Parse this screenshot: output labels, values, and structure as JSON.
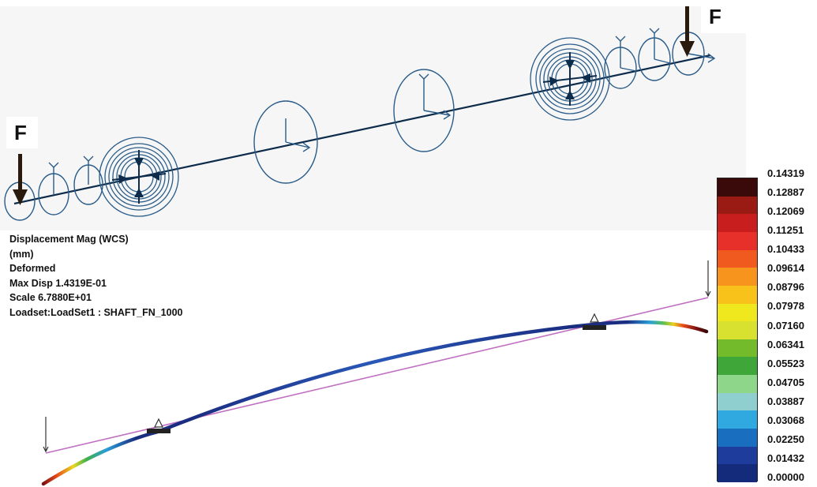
{
  "model": {
    "force_label_left": "F",
    "force_label_right": "F"
  },
  "info": {
    "line1": "Displacement Mag (WCS)",
    "line2": "(mm)",
    "line3": "Deformed",
    "line4": "Max Disp  1.4319E-01",
    "line5": "Scale  6.7880E+01",
    "line6": "Loadset:LoadSet1 :  SHAFT_FN_1000"
  },
  "legend": {
    "labels": [
      "0.14319",
      "0.12887",
      "0.12069",
      "0.11251",
      "0.10433",
      "0.09614",
      "0.08796",
      "0.07978",
      "0.07160",
      "0.06341",
      "0.05523",
      "0.04705",
      "0.03887",
      "0.03068",
      "0.02250",
      "0.01432",
      "0.00000"
    ],
    "colors": [
      "#3a0a0a",
      "#9a1a14",
      "#c81e1e",
      "#e8302a",
      "#f05a1e",
      "#f7941d",
      "#f8c21a",
      "#f0e81e",
      "#d8e030",
      "#74bb2c",
      "#3fa63a",
      "#8ed68a",
      "#8fcfd0",
      "#30a9e0",
      "#1a6ec0",
      "#1e3c9c",
      "#142a7a"
    ]
  }
}
